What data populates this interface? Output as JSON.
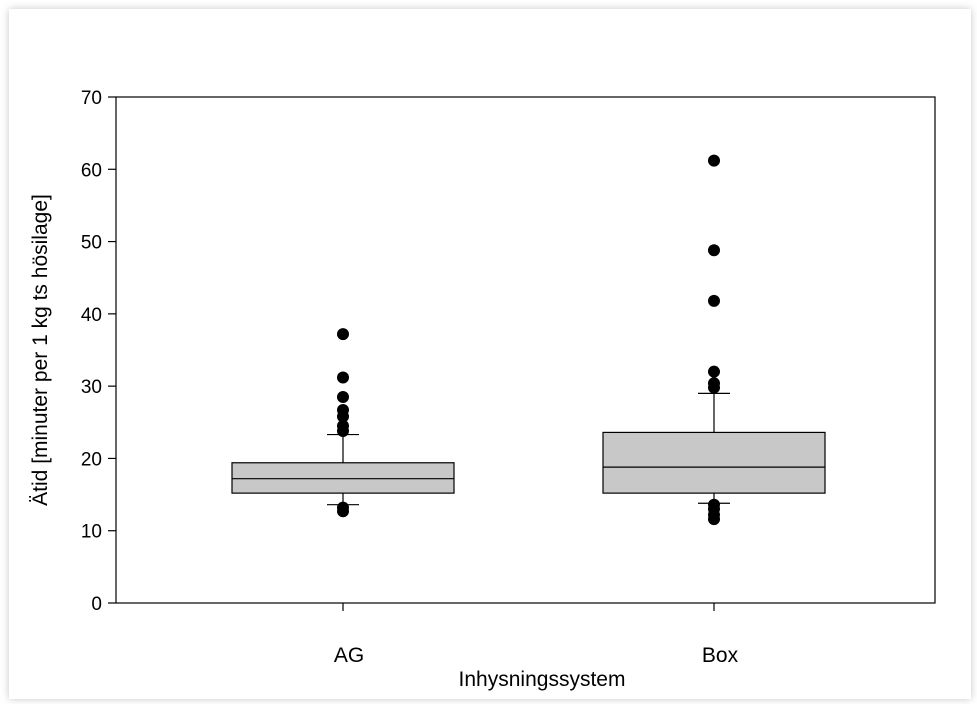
{
  "chart_data": {
    "type": "boxplot",
    "xlabel": "Inhysningssystem",
    "ylabel": "Ätid [minuter per 1 kg ts hösilage]",
    "ylim": [
      0,
      70
    ],
    "yticks": [
      0,
      10,
      20,
      30,
      40,
      50,
      60,
      70
    ],
    "grid": false,
    "colors": {
      "box_fill": "#c8c8c8",
      "stroke": "#000000",
      "outlier": "#000000"
    },
    "categories": [
      "AG",
      "Box"
    ],
    "boxes": [
      {
        "category": "AG",
        "whisker_low": 13.6,
        "q1": 15.2,
        "median": 17.2,
        "q3": 19.4,
        "whisker_high": 23.3,
        "outliers": [
          12.7,
          13.2,
          23.8,
          24.5,
          25.8,
          26.7,
          28.5,
          31.2,
          37.2
        ]
      },
      {
        "category": "Box",
        "whisker_low": 13.8,
        "q1": 15.2,
        "median": 18.8,
        "q3": 23.6,
        "whisker_high": 29.0,
        "outliers": [
          11.6,
          12.2,
          13.0,
          13.6,
          29.8,
          30.4,
          32.0,
          41.8,
          48.8,
          61.2
        ]
      }
    ]
  }
}
